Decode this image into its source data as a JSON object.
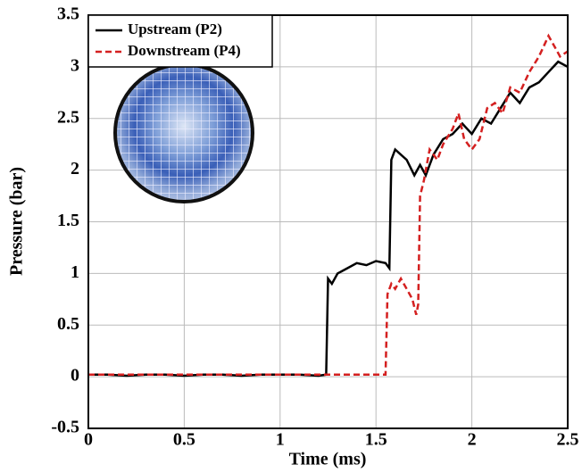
{
  "chart_data": {
    "type": "line",
    "xlabel": "Time (ms)",
    "ylabel": "Pressure (bar)",
    "xlim": [
      0,
      2.5
    ],
    "xticks": [
      0,
      0.5,
      1,
      1.5,
      2,
      2.5
    ],
    "ylim": [
      -0.5,
      3.5
    ],
    "yticks": [
      -0.5,
      0,
      0.5,
      1,
      1.5,
      2,
      2.5,
      3,
      3.5
    ],
    "grid": true,
    "legend": "upper left",
    "series": [
      {
        "name": "Upstream (P2)",
        "color": "#000000",
        "line_style": "solid",
        "x": [
          0,
          0.1,
          0.2,
          0.3,
          0.4,
          0.5,
          0.6,
          0.7,
          0.8,
          0.9,
          1.0,
          1.1,
          1.2,
          1.24,
          1.25,
          1.27,
          1.3,
          1.35,
          1.4,
          1.45,
          1.5,
          1.55,
          1.57,
          1.58,
          1.6,
          1.63,
          1.66,
          1.7,
          1.73,
          1.76,
          1.8,
          1.85,
          1.9,
          1.95,
          2.0,
          2.05,
          2.1,
          2.15,
          2.2,
          2.25,
          2.3,
          2.35,
          2.4,
          2.45,
          2.5
        ],
        "values": [
          0.02,
          0.02,
          0.01,
          0.02,
          0.02,
          0.01,
          0.02,
          0.02,
          0.01,
          0.02,
          0.02,
          0.02,
          0.01,
          0.02,
          0.95,
          0.9,
          1.0,
          1.05,
          1.1,
          1.08,
          1.12,
          1.1,
          1.05,
          2.1,
          2.2,
          2.15,
          2.1,
          1.95,
          2.05,
          1.95,
          2.15,
          2.3,
          2.35,
          2.45,
          2.35,
          2.5,
          2.45,
          2.6,
          2.75,
          2.65,
          2.8,
          2.85,
          2.95,
          3.05,
          3.0
        ]
      },
      {
        "name": "Downstream (P4)",
        "color": "#d42020",
        "line_style": "dashed",
        "x": [
          0,
          0.2,
          0.4,
          0.6,
          0.8,
          1.0,
          1.2,
          1.4,
          1.55,
          1.56,
          1.58,
          1.6,
          1.63,
          1.66,
          1.69,
          1.71,
          1.72,
          1.73,
          1.75,
          1.78,
          1.82,
          1.85,
          1.9,
          1.93,
          1.96,
          2.0,
          2.04,
          2.08,
          2.12,
          2.16,
          2.2,
          2.25,
          2.3,
          2.35,
          2.4,
          2.43,
          2.46,
          2.5
        ],
        "values": [
          0.02,
          0.02,
          0.02,
          0.02,
          0.02,
          0.02,
          0.02,
          0.02,
          0.02,
          0.8,
          0.9,
          0.85,
          0.95,
          0.85,
          0.75,
          0.6,
          0.7,
          1.75,
          1.9,
          2.2,
          2.1,
          2.25,
          2.4,
          2.55,
          2.3,
          2.2,
          2.3,
          2.6,
          2.65,
          2.55,
          2.8,
          2.75,
          2.95,
          3.1,
          3.3,
          3.2,
          3.1,
          3.15
        ]
      }
    ]
  }
}
